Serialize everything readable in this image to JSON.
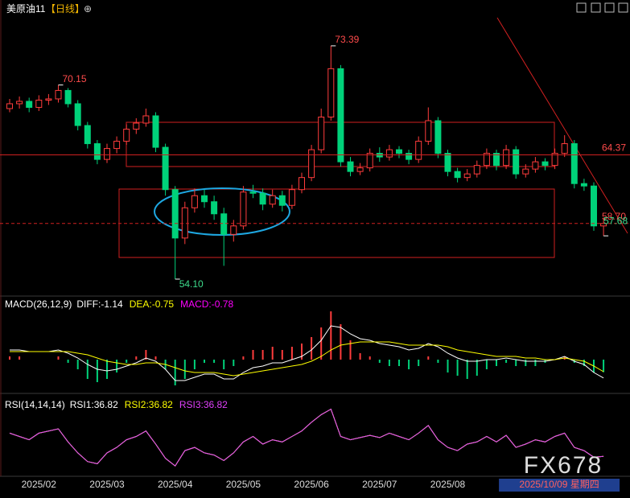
{
  "header": {
    "symbol": "美原油11",
    "period": "【日线】",
    "icon": "⊕"
  },
  "watermark": "FX678",
  "chart_data": [
    {
      "type": "candlestick",
      "categories": [
        null,
        null,
        null,
        "2025/02",
        null,
        null,
        null,
        null,
        null,
        null,
        "2025/03",
        null,
        null,
        null,
        null,
        null,
        null,
        "2025/04",
        null,
        null,
        null,
        null,
        null,
        null,
        "2025/05",
        null,
        null,
        null,
        null,
        null,
        null,
        "2025/06",
        null,
        null,
        null,
        null,
        null,
        null,
        "2025/07",
        null,
        null,
        null,
        null,
        null,
        null,
        "2025/08",
        null,
        null,
        null,
        null,
        null,
        null,
        null,
        null,
        null,
        null,
        null,
        null,
        null,
        null,
        null,
        "2025/10/09 星期四"
      ],
      "open": [
        68.2,
        68.6,
        68.8,
        68.3,
        68.9,
        69.0,
        69.7,
        68.6,
        66.8,
        65.3,
        64.0,
        64.9,
        65.5,
        66.5,
        67.0,
        67.6,
        65.0,
        61.5,
        57.5,
        60.0,
        61.0,
        60.5,
        59.5,
        57.8,
        58.5,
        61.3,
        61.2,
        60.3,
        61.0,
        60.2,
        61.5,
        62.5,
        64.8,
        67.5,
        71.5,
        63.8,
        63.0,
        63.3,
        64.5,
        64.2,
        64.8,
        64.5,
        64.0,
        65.5,
        67.2,
        64.5,
        63.0,
        62.5,
        62.8,
        63.5,
        64.5,
        63.5,
        64.8,
        62.8,
        63.2,
        63.8,
        63.5,
        64.5,
        65.3,
        62.0,
        61.8,
        58.5
      ],
      "high": [
        69.0,
        69.2,
        69.1,
        69.3,
        69.4,
        70.15,
        69.9,
        68.9,
        67.1,
        65.6,
        65.3,
        65.9,
        66.9,
        67.4,
        68.2,
        67.9,
        65.3,
        61.8,
        60.5,
        61.6,
        61.5,
        61.0,
        60.0,
        59.0,
        61.8,
        61.9,
        61.6,
        61.5,
        61.4,
        61.9,
        62.9,
        65.2,
        68.2,
        73.39,
        71.8,
        64.2,
        63.7,
        64.9,
        65.0,
        65.2,
        65.1,
        64.8,
        65.9,
        68.3,
        67.5,
        64.8,
        63.3,
        63.2,
        63.9,
        64.9,
        64.8,
        65.2,
        65.1,
        63.6,
        64.2,
        64.1,
        64.9,
        66.0,
        65.6,
        62.4,
        62.1,
        59.2
      ],
      "low": [
        67.9,
        68.2,
        67.9,
        68.0,
        68.5,
        68.7,
        68.3,
        66.4,
        64.9,
        63.6,
        63.7,
        64.5,
        65.2,
        66.1,
        66.7,
        64.6,
        61.0,
        54.1,
        57.0,
        59.6,
        60.0,
        59.0,
        55.2,
        57.2,
        58.2,
        60.8,
        59.8,
        60.0,
        59.7,
        59.9,
        61.2,
        62.2,
        64.5,
        67.2,
        63.4,
        62.6,
        62.7,
        63.0,
        63.8,
        63.9,
        64.1,
        63.6,
        63.7,
        65.2,
        64.1,
        62.6,
        62.1,
        62.2,
        62.5,
        63.2,
        63.1,
        63.2,
        62.4,
        62.5,
        62.9,
        63.1,
        63.2,
        64.2,
        61.6,
        61.4,
        58.1,
        57.68
      ],
      "close": [
        68.6,
        68.8,
        68.3,
        68.9,
        69.0,
        69.7,
        68.6,
        66.8,
        65.3,
        64.0,
        64.9,
        65.5,
        66.5,
        67.0,
        67.6,
        65.0,
        61.5,
        57.5,
        60.0,
        61.0,
        60.5,
        59.5,
        57.8,
        58.5,
        61.3,
        61.2,
        60.3,
        61.0,
        60.2,
        61.5,
        62.5,
        64.8,
        67.5,
        71.5,
        63.8,
        63.0,
        63.3,
        64.5,
        64.2,
        64.8,
        64.5,
        64.0,
        65.5,
        67.2,
        64.5,
        63.0,
        62.5,
        62.8,
        63.5,
        64.5,
        63.5,
        64.8,
        62.8,
        63.2,
        63.8,
        63.5,
        64.5,
        65.3,
        62.0,
        61.8,
        58.5,
        58.7
      ],
      "up_color": "#ff3c3c",
      "down_color": "#00d27a",
      "ylim": [
        52.9,
        75.98
      ],
      "annotations": [
        {
          "value": 73.39,
          "label": "73.39",
          "color": "#ff4b4b"
        },
        {
          "value": 70.15,
          "label": "70.15",
          "color": "#ff4b4b"
        },
        {
          "value": 54.1,
          "label": "54.10",
          "color": "#3ddc8c"
        },
        {
          "value": 64.37,
          "label": "64.37",
          "color": "#ff4b4b",
          "line": "solid"
        },
        {
          "value": 58.7,
          "label": "58.70",
          "color": "#ff4b4b",
          "line": "dashed"
        },
        {
          "value": 57.68,
          "label": "57.68",
          "color": "#3ddc8c"
        }
      ]
    },
    {
      "type": "combo",
      "title": "MACD(26,12,9)",
      "series": [
        {
          "name": "DIFF:-1.14",
          "color": "#ffffff",
          "values": [
            0.6,
            0.6,
            0.5,
            0.5,
            0.5,
            0.6,
            0.4,
            0.1,
            -0.3,
            -0.6,
            -0.7,
            -0.6,
            -0.4,
            -0.2,
            0.1,
            -0.1,
            -0.6,
            -1.3,
            -1.3,
            -1.1,
            -0.9,
            -0.9,
            -1.2,
            -1.2,
            -0.8,
            -0.5,
            -0.4,
            -0.2,
            -0.2,
            0.0,
            0.2,
            0.6,
            1.2,
            2.1,
            2.0,
            1.6,
            1.3,
            1.2,
            1.0,
            0.9,
            0.8,
            0.6,
            0.7,
            1.0,
            0.8,
            0.4,
            0.1,
            -0.1,
            -0.1,
            0.0,
            0.0,
            0.1,
            0.0,
            -0.1,
            -0.1,
            -0.1,
            0.0,
            0.2,
            -0.1,
            -0.3,
            -0.8,
            -1.14
          ]
        },
        {
          "name": "DEA:-0.75",
          "color": "#ffff00",
          "values": [
            0.5,
            0.5,
            0.5,
            0.5,
            0.5,
            0.5,
            0.5,
            0.4,
            0.3,
            0.1,
            -0.1,
            -0.2,
            -0.3,
            -0.3,
            -0.2,
            -0.2,
            -0.3,
            -0.5,
            -0.7,
            -0.8,
            -0.8,
            -0.8,
            -0.9,
            -1.0,
            -0.9,
            -0.8,
            -0.7,
            -0.6,
            -0.5,
            -0.4,
            -0.3,
            -0.1,
            0.2,
            0.6,
            0.9,
            1.0,
            1.1,
            1.1,
            1.1,
            1.1,
            1.0,
            0.9,
            0.9,
            0.9,
            0.9,
            0.8,
            0.6,
            0.5,
            0.4,
            0.3,
            0.2,
            0.2,
            0.2,
            0.1,
            0.1,
            0.0,
            0.0,
            0.1,
            0.0,
            -0.1,
            -0.4,
            -0.75
          ]
        },
        {
          "name": "MACD:-0.78",
          "color": "#ff00ff",
          "kind": "bar",
          "values": [
            0.2,
            0.2,
            0,
            0,
            0,
            0.2,
            -0.2,
            -0.6,
            -1.2,
            -1.4,
            -1.2,
            -0.8,
            -0.2,
            0.2,
            0.6,
            0.2,
            -0.6,
            -1.6,
            -1.2,
            -0.6,
            -0.2,
            -0.2,
            -0.6,
            -0.4,
            0.2,
            0.6,
            0.6,
            0.8,
            0.6,
            0.8,
            1.0,
            1.4,
            2.0,
            3.0,
            2.2,
            1.2,
            0.4,
            0.2,
            -0.2,
            -0.4,
            -0.4,
            -0.6,
            -0.4,
            0.2,
            -0.2,
            -0.8,
            -1.0,
            -1.2,
            -1.0,
            -0.6,
            -0.4,
            -0.2,
            -0.4,
            -0.4,
            -0.4,
            -0.2,
            0,
            0.2,
            -0.2,
            -0.4,
            -0.8,
            -0.78
          ]
        }
      ],
      "up_color": "#ff3c3c",
      "down_color": "#00d27a",
      "ylim": [
        -2.05,
        3.85
      ]
    },
    {
      "type": "line",
      "title": "RSI(14,14,14)",
      "series": [
        {
          "name": "RSI1:36.82",
          "color": "#ffffff",
          "values": [
            58,
            55,
            52,
            58,
            60,
            62,
            50,
            40,
            32,
            30,
            40,
            45,
            52,
            55,
            60,
            48,
            35,
            28,
            42,
            45,
            40,
            38,
            33,
            40,
            50,
            55,
            48,
            52,
            50,
            55,
            60,
            68,
            75,
            80,
            55,
            52,
            54,
            56,
            54,
            58,
            55,
            52,
            58,
            65,
            52,
            45,
            42,
            48,
            50,
            55,
            50,
            56,
            45,
            48,
            52,
            50,
            55,
            58,
            45,
            42,
            36,
            36.82
          ]
        },
        {
          "name": "RSI2:36.82",
          "color": "#ffff00",
          "values": [
            58,
            55,
            52,
            58,
            60,
            62,
            50,
            40,
            32,
            30,
            40,
            45,
            52,
            55,
            60,
            48,
            35,
            28,
            42,
            45,
            40,
            38,
            33,
            40,
            50,
            55,
            48,
            52,
            50,
            55,
            60,
            68,
            75,
            80,
            55,
            52,
            54,
            56,
            54,
            58,
            55,
            52,
            58,
            65,
            52,
            45,
            42,
            48,
            50,
            55,
            50,
            56,
            45,
            48,
            52,
            50,
            55,
            58,
            45,
            42,
            36,
            36.82
          ]
        },
        {
          "name": "RSI3:36.82",
          "color": "#e040fb",
          "values": [
            58,
            55,
            52,
            58,
            60,
            62,
            50,
            40,
            32,
            30,
            40,
            45,
            52,
            55,
            60,
            48,
            35,
            28,
            42,
            45,
            40,
            38,
            33,
            40,
            50,
            55,
            48,
            52,
            50,
            55,
            60,
            68,
            75,
            80,
            55,
            52,
            54,
            56,
            54,
            58,
            55,
            52,
            58,
            65,
            52,
            45,
            42,
            48,
            50,
            55,
            50,
            56,
            45,
            48,
            52,
            50,
            55,
            58,
            45,
            42,
            36,
            36.82
          ]
        }
      ],
      "ylim": [
        20,
        90
      ]
    }
  ]
}
